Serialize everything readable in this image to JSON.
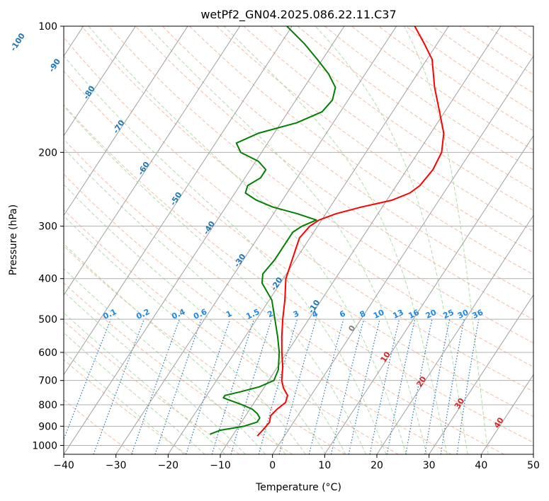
{
  "chart_data": {
    "type": "line",
    "title": "wetPf2_GN04.2025.086.22.11.C37",
    "xlabel": "Temperature (°C)",
    "ylabel": "Pressure (hPa)",
    "xlim": [
      -40,
      50
    ],
    "ylim": [
      1050,
      100
    ],
    "y_scale": "log",
    "grid": true,
    "x_ticks": [
      -40,
      -30,
      -20,
      -10,
      0,
      10,
      20,
      30,
      40,
      50
    ],
    "y_ticks": [
      100,
      200,
      300,
      400,
      500,
      600,
      700,
      800,
      900,
      1000
    ],
    "colors": {
      "temperature": "#ff0000",
      "dewpoint": "#008000",
      "isotherms": "#a0a0a0",
      "dry_adiabats": "#f4a582",
      "moist_adiabats": "#a6d8a0",
      "mixing_ratio": "#1f77b4",
      "isotherm_labels": "#1f77b4",
      "adiabat_labels": "#d62728"
    },
    "series": [
      {
        "points": [
          {
            "p": 950,
            "t": -5.2
          },
          {
            "p": 920,
            "t": -4.9
          },
          {
            "p": 880,
            "t": -4.6
          },
          {
            "p": 850,
            "t": -5.2
          },
          {
            "p": 820,
            "t": -4.8
          },
          {
            "p": 790,
            "t": -4.0
          },
          {
            "p": 760,
            "t": -4.5
          },
          {
            "p": 730,
            "t": -6.2
          },
          {
            "p": 700,
            "t": -7.5
          },
          {
            "p": 650,
            "t": -9.0
          },
          {
            "p": 600,
            "t": -11.0
          },
          {
            "p": 550,
            "t": -13.0
          },
          {
            "p": 500,
            "t": -15.0
          },
          {
            "p": 450,
            "t": -17.0
          },
          {
            "p": 400,
            "t": -19.5
          },
          {
            "p": 350,
            "t": -21.0
          },
          {
            "p": 320,
            "t": -22.0
          },
          {
            "p": 300,
            "t": -21.5
          },
          {
            "p": 290,
            "t": -20.5
          },
          {
            "p": 280,
            "t": -18.0
          },
          {
            "p": 270,
            "t": -14.0
          },
          {
            "p": 260,
            "t": -9.0
          },
          {
            "p": 250,
            "t": -6.5
          },
          {
            "p": 240,
            "t": -5.5
          },
          {
            "p": 220,
            "t": -5.0
          },
          {
            "p": 200,
            "t": -5.5
          },
          {
            "p": 180,
            "t": -7.5
          },
          {
            "p": 160,
            "t": -11.0
          },
          {
            "p": 140,
            "t": -15.0
          },
          {
            "p": 120,
            "t": -19.0
          },
          {
            "p": 110,
            "t": -22.5
          },
          {
            "p": 100,
            "t": -26.5
          }
        ]
      },
      {
        "points": [
          {
            "p": 940,
            "t": -14.5
          },
          {
            "p": 920,
            "t": -13.0
          },
          {
            "p": 900,
            "t": -9.0
          },
          {
            "p": 880,
            "t": -7.0
          },
          {
            "p": 860,
            "t": -7.0
          },
          {
            "p": 840,
            "t": -8.0
          },
          {
            "p": 820,
            "t": -9.5
          },
          {
            "p": 800,
            "t": -12.0
          },
          {
            "p": 780,
            "t": -15.0
          },
          {
            "p": 770,
            "t": -16.5
          },
          {
            "p": 760,
            "t": -16.5
          },
          {
            "p": 745,
            "t": -14.0
          },
          {
            "p": 725,
            "t": -11.0
          },
          {
            "p": 700,
            "t": -9.0
          },
          {
            "p": 660,
            "t": -9.5
          },
          {
            "p": 600,
            "t": -11.5
          },
          {
            "p": 550,
            "t": -13.8
          },
          {
            "p": 500,
            "t": -16.5
          },
          {
            "p": 450,
            "t": -19.5
          },
          {
            "p": 410,
            "t": -23.5
          },
          {
            "p": 390,
            "t": -24.5
          },
          {
            "p": 360,
            "t": -24.0
          },
          {
            "p": 330,
            "t": -24.0
          },
          {
            "p": 310,
            "t": -24.0
          },
          {
            "p": 300,
            "t": -23.0
          },
          {
            "p": 290,
            "t": -21.0
          },
          {
            "p": 280,
            "t": -25.5
          },
          {
            "p": 270,
            "t": -31.0
          },
          {
            "p": 260,
            "t": -35.0
          },
          {
            "p": 250,
            "t": -38.0
          },
          {
            "p": 240,
            "t": -38.5
          },
          {
            "p": 230,
            "t": -37.0
          },
          {
            "p": 220,
            "t": -37.0
          },
          {
            "p": 210,
            "t": -39.5
          },
          {
            "p": 200,
            "t": -44.0
          },
          {
            "p": 190,
            "t": -46.0
          },
          {
            "p": 180,
            "t": -43.0
          },
          {
            "p": 170,
            "t": -37.0
          },
          {
            "p": 160,
            "t": -33.5
          },
          {
            "p": 150,
            "t": -33.0
          },
          {
            "p": 140,
            "t": -34.0
          },
          {
            "p": 130,
            "t": -37.0
          },
          {
            "p": 120,
            "t": -41.0
          },
          {
            "p": 110,
            "t": -45.5
          },
          {
            "p": 100,
            "t": -51.0
          }
        ]
      }
    ],
    "isotherm_labels": [
      "-100",
      "-90",
      "-80",
      "-70",
      "-60",
      "-50",
      "-40",
      "-30",
      "-20",
      "-10",
      "0",
      "10",
      "20",
      "30",
      "40"
    ],
    "mixing_ratio_labels": [
      "0.1",
      "0.2",
      "0.4",
      "0.6",
      "1",
      "1.5",
      "2",
      "3",
      "4",
      "6",
      "8",
      "10",
      "13",
      "16",
      "20",
      "25",
      "30",
      "36"
    ]
  }
}
